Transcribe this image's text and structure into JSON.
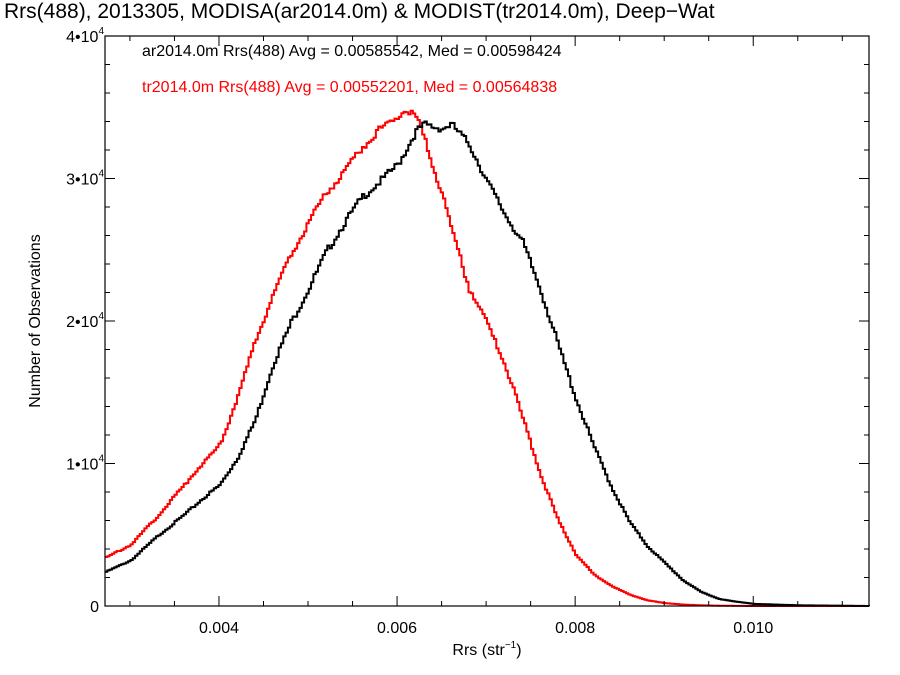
{
  "chart_data": {
    "type": "line",
    "title": "Rrs(488), 2013305, MODISA(ar2014.0m) & MODIST(tr2014.0m), Deep−Wat",
    "xlabel": "Rrs (str",
    "xlabel_sup": "−1",
    "xlabel_close": ")",
    "ylabel": "Number of Observations",
    "xlim": [
      0.00272,
      0.0113
    ],
    "ylim": [
      0,
      40000
    ],
    "x_ticks": [
      "0.004",
      "0.006",
      "0.008",
      "0.010"
    ],
    "x_tick_values": [
      0.004,
      0.006,
      0.008,
      0.01
    ],
    "y_ticks": [
      {
        "value": 0,
        "base": "0",
        "exp": ""
      },
      {
        "value": 10000,
        "base": "1•10",
        "exp": "4"
      },
      {
        "value": 20000,
        "base": "2•10",
        "exp": "4"
      },
      {
        "value": 30000,
        "base": "3•10",
        "exp": "4"
      },
      {
        "value": 40000,
        "base": "4•10",
        "exp": "4"
      }
    ],
    "legend": [
      {
        "text": "ar2014.0m Rrs(488) Avg = 0.00585542, Med = 0.00598424",
        "color": "#000000"
      },
      {
        "text": "tr2014.0m Rrs(488) Avg = 0.00552201, Med = 0.00564838",
        "color": "#ff0000"
      }
    ],
    "grid": false,
    "series": [
      {
        "name": "ar2014.0m",
        "color": "#000000",
        "x": [
          0.00272,
          0.003,
          0.0033,
          0.0036,
          0.0038,
          0.004,
          0.0042,
          0.0044,
          0.0046,
          0.0048,
          0.005,
          0.0052,
          0.0054,
          0.0056,
          0.0058,
          0.006,
          0.0061,
          0.0062,
          0.0063,
          0.0064,
          0.0065,
          0.0066,
          0.0068,
          0.007,
          0.0072,
          0.0074,
          0.0076,
          0.0078,
          0.008,
          0.0082,
          0.0084,
          0.0086,
          0.0088,
          0.009,
          0.0092,
          0.0094,
          0.0096,
          0.0098,
          0.01,
          0.0105,
          0.011,
          0.0113
        ],
        "y": [
          2400,
          3200,
          4900,
          6400,
          7500,
          8500,
          10400,
          13100,
          17000,
          19900,
          22300,
          24900,
          26900,
          28700,
          29800,
          31000,
          32100,
          33300,
          33800,
          33600,
          33500,
          33800,
          32400,
          29800,
          27500,
          25500,
          22200,
          18300,
          14500,
          11200,
          8300,
          5900,
          4200,
          3000,
          1800,
          1000,
          500,
          300,
          150,
          50,
          20,
          0
        ]
      },
      {
        "name": "tr2014.0m",
        "color": "#ff0000",
        "x": [
          0.00272,
          0.003,
          0.0033,
          0.0036,
          0.0038,
          0.004,
          0.0042,
          0.0044,
          0.0046,
          0.0048,
          0.005,
          0.0052,
          0.0054,
          0.0056,
          0.0058,
          0.006,
          0.0061,
          0.0062,
          0.0063,
          0.0064,
          0.0065,
          0.0066,
          0.0068,
          0.007,
          0.0072,
          0.0074,
          0.0076,
          0.0078,
          0.008,
          0.0082,
          0.0084,
          0.0086,
          0.0088,
          0.009,
          0.0092,
          0.0094,
          0.0096,
          0.0098,
          0.01,
          0.0105,
          0.011,
          0.0113
        ],
        "y": [
          3400,
          4300,
          6300,
          8500,
          10000,
          11300,
          14700,
          18600,
          21900,
          24700,
          27000,
          29000,
          30500,
          32200,
          33500,
          34400,
          34800,
          34300,
          32800,
          30600,
          28900,
          26500,
          22300,
          19800,
          17000,
          13200,
          9200,
          6000,
          3600,
          2200,
          1400,
          800,
          400,
          200,
          100,
          50,
          20,
          10,
          0,
          0,
          0,
          0
        ]
      }
    ]
  }
}
